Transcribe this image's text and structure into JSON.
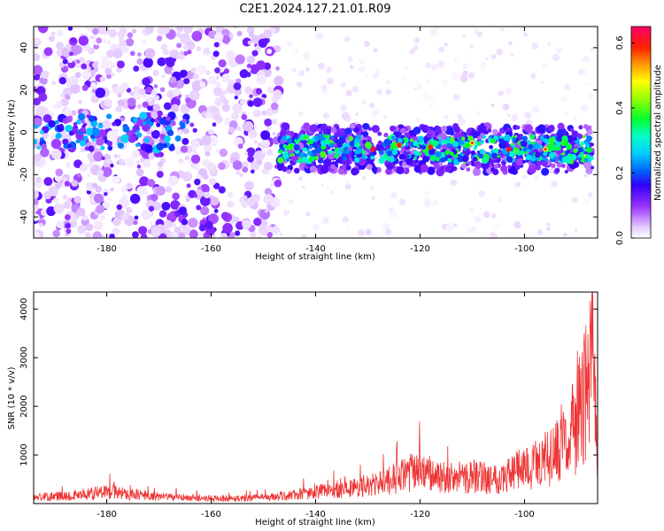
{
  "title": "C2E1.2024.127.21.01.R09",
  "chart_data": [
    {
      "type": "heatmap",
      "xlabel": "Height of straight line (km)",
      "ylabel": "Frequency (Hz)",
      "xlim": [
        -194,
        -86
      ],
      "ylim": [
        -50,
        50
      ],
      "xticks": [
        -180,
        -160,
        -140,
        -120,
        -100
      ],
      "yticks": [
        -40,
        -20,
        0,
        20,
        40
      ],
      "colorbar": {
        "label": "Normalized spectral amplitude",
        "range": [
          0,
          0.65
        ],
        "ticks": [
          0.0,
          0.2,
          0.4,
          0.6
        ]
      },
      "features": {
        "noise_region_x": [
          -194,
          -147
        ],
        "echo_band_x": [
          -147,
          -87
        ],
        "echo_band_center_hz": -8,
        "left_band_center_hz": 0,
        "peak_amplitude": 0.62
      }
    },
    {
      "type": "line",
      "xlabel": "Height of straight line (km)",
      "ylabel": "SNR (10 * v/v)",
      "xlim": [
        -194,
        -86
      ],
      "ylim": [
        0,
        4350
      ],
      "xticks": [
        -180,
        -160,
        -140,
        -120,
        -100
      ],
      "yticks": [
        1000,
        2000,
        3000,
        4000
      ],
      "color": "#ee3333",
      "series": [
        {
          "x": [
            -194,
            -185,
            -180,
            -170,
            -160,
            -150,
            -145,
            -140,
            -135,
            -130,
            -125,
            -122,
            -120,
            -115,
            -110,
            -105,
            -100,
            -95,
            -92,
            -90,
            -88,
            -87,
            -86
          ],
          "y": [
            180,
            260,
            350,
            200,
            150,
            170,
            240,
            330,
            420,
            520,
            700,
            900,
            950,
            720,
            800,
            750,
            1050,
            1350,
            1750,
            2400,
            3300,
            4300,
            1500
          ]
        }
      ]
    }
  ]
}
